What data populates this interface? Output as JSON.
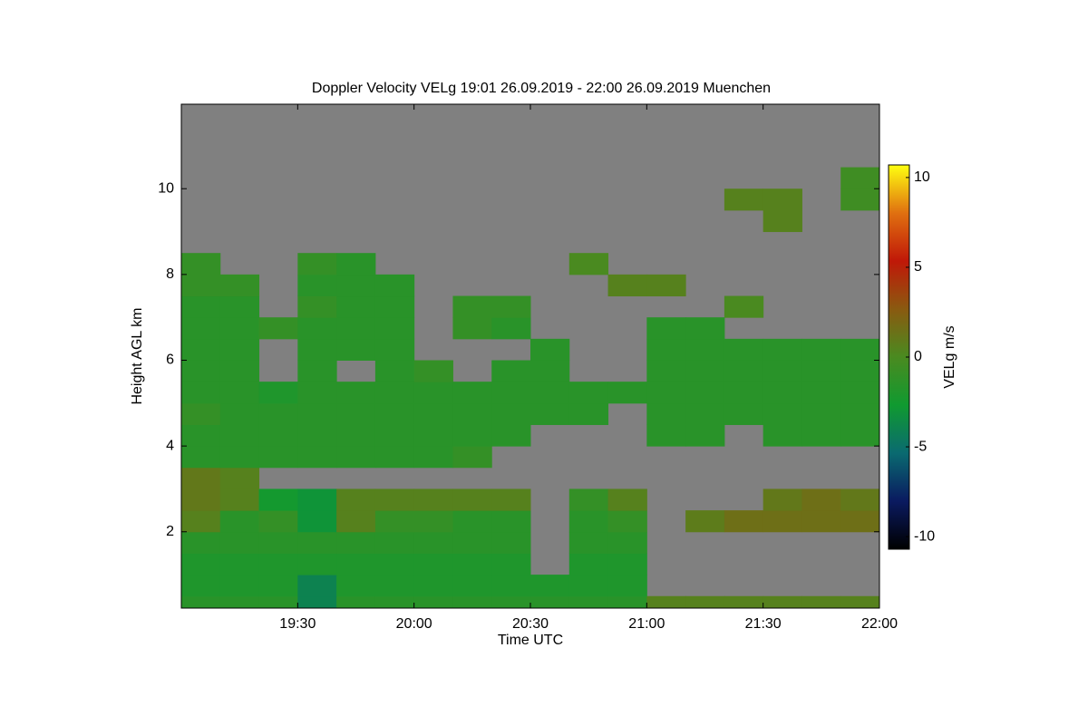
{
  "chart_data": {
    "type": "heatmap",
    "title": "Doppler Velocity VELg   19:01 26.09.2019 - 22:00 26.09.2019 Muenchen",
    "xlabel": "Time UTC",
    "ylabel": "Height AGL km",
    "colorbar_label": "VELg m/s",
    "xlim": [
      1140,
      1320
    ],
    "xticks": [
      {
        "value": 1170,
        "label": "19:30"
      },
      {
        "value": 1200,
        "label": "20:00"
      },
      {
        "value": 1230,
        "label": "20:30"
      },
      {
        "value": 1260,
        "label": "21:00"
      },
      {
        "value": 1290,
        "label": "21:30"
      },
      {
        "value": 1320,
        "label": "22:00"
      }
    ],
    "ylim": [
      0.22,
      11.97
    ],
    "yticks": [
      2,
      4,
      6,
      8,
      10
    ],
    "zlim": [
      -10.7,
      10.7
    ],
    "zticks": [
      10,
      5,
      0,
      -5,
      -10
    ],
    "colormap": [
      "#000000",
      "#0a1a60",
      "#0a6a70",
      "#109a30",
      "#4a8a20",
      "#8a5a10",
      "#c01808",
      "#e07010",
      "#ffff10"
    ],
    "missing_color": "#808080",
    "x_edges": [
      1140,
      1150,
      1160,
      1170,
      1180,
      1190,
      1200,
      1210,
      1220,
      1230,
      1240,
      1250,
      1260,
      1270,
      1280,
      1290,
      1300,
      1310,
      1320
    ],
    "y_edges": [
      0,
      0.5,
      1,
      1.5,
      2,
      2.5,
      3,
      3.5,
      4,
      4.5,
      5,
      5.5,
      6,
      6.5,
      7,
      7.5,
      8,
      8.5,
      9,
      9.5,
      10,
      10.5,
      11,
      11.5,
      12
    ],
    "z": [
      [
        -1.5,
        -1.5,
        -1.5,
        -4,
        -1.5,
        -1.5,
        -1.5,
        -1.5,
        -1.5,
        -1.5,
        -1.5,
        -1.5,
        0.5,
        0.5,
        0.5,
        0.5,
        0.5,
        0.5
      ],
      [
        -2,
        -2,
        -2,
        -4,
        -2,
        -2,
        -2,
        -2,
        -2,
        -2,
        -2,
        -2,
        null,
        null,
        null,
        null,
        null,
        null
      ],
      [
        -2,
        -2,
        -2,
        -2,
        -2,
        -2,
        -2,
        -2,
        -2,
        null,
        -2,
        -2,
        null,
        null,
        null,
        null,
        null,
        null
      ],
      [
        -1.5,
        -1.5,
        -1.5,
        -1.5,
        -1.5,
        -1.5,
        -1.5,
        -1.5,
        -1.5,
        null,
        -1.5,
        -1.5,
        null,
        null,
        null,
        null,
        null,
        null
      ],
      [
        0.5,
        -1.5,
        -1,
        -3,
        0.5,
        -1,
        -1,
        -1.5,
        -1.5,
        null,
        -1.5,
        -1,
        null,
        0.8,
        1.5,
        1.5,
        1.5,
        1.5
      ],
      [
        1,
        0.5,
        -2.5,
        -3,
        0.5,
        0.5,
        0.5,
        0.5,
        0.5,
        null,
        -1,
        0.5,
        null,
        null,
        null,
        1,
        1.5,
        1
      ],
      [
        1,
        0.5,
        null,
        null,
        null,
        null,
        null,
        null,
        null,
        null,
        null,
        null,
        null,
        null,
        null,
        null,
        null,
        null
      ],
      [
        -1.5,
        -1.5,
        -1.5,
        -1.5,
        -1.5,
        -1.5,
        -1.5,
        -1,
        null,
        null,
        null,
        null,
        null,
        null,
        null,
        null,
        null,
        null
      ],
      [
        -1.5,
        -1.5,
        -1.5,
        -1.5,
        -1.5,
        -1.5,
        -1.5,
        -1.5,
        -1.5,
        null,
        null,
        null,
        -1.5,
        -1.5,
        null,
        -1.5,
        -1.5,
        -1.5
      ],
      [
        -1,
        -1.5,
        -1.5,
        -1.5,
        -1.5,
        -1.5,
        -1.5,
        -1.5,
        -1.5,
        -1.5,
        -1.5,
        null,
        -1.5,
        -1.5,
        -1.5,
        -1.5,
        -1.5,
        -1.5
      ],
      [
        -1.5,
        -1.5,
        -2,
        -1.5,
        -1.5,
        -1.5,
        -1.5,
        -1.5,
        -1.5,
        -1.5,
        -1.5,
        -1.5,
        -1.5,
        -1.5,
        -1.5,
        -1.5,
        -1.5,
        -1.5
      ],
      [
        -1.5,
        -1.5,
        null,
        -1.5,
        null,
        -1.5,
        -1,
        null,
        -1.5,
        -1.5,
        null,
        null,
        -1.5,
        -1.5,
        -1.5,
        -1.5,
        -1.5,
        -1.5
      ],
      [
        -1.5,
        -1.5,
        null,
        -1.5,
        -1.5,
        -1.5,
        null,
        null,
        null,
        -1.5,
        null,
        null,
        -1.5,
        -1.5,
        -1.5,
        -1.5,
        -1.5,
        -1.5
      ],
      [
        -1.5,
        -1.5,
        -1,
        -1.5,
        -1.5,
        -1.5,
        null,
        -1,
        -1.5,
        null,
        null,
        null,
        -1.5,
        -1.5,
        null,
        null,
        null,
        null
      ],
      [
        -1.5,
        -1.5,
        null,
        -1,
        -1.5,
        -1.5,
        null,
        -1,
        -1,
        null,
        null,
        null,
        null,
        null,
        0,
        null,
        null,
        null
      ],
      [
        -1,
        -1,
        null,
        -1.5,
        -1.5,
        -1.5,
        null,
        null,
        null,
        null,
        null,
        0.5,
        0.5,
        null,
        null,
        null,
        null,
        null
      ],
      [
        -1,
        null,
        null,
        -1,
        -1.5,
        null,
        null,
        null,
        null,
        null,
        0,
        null,
        null,
        null,
        null,
        null,
        null,
        null
      ],
      [
        null,
        null,
        null,
        null,
        null,
        null,
        null,
        null,
        null,
        null,
        null,
        null,
        null,
        null,
        null,
        null,
        null,
        null
      ],
      [
        null,
        null,
        null,
        null,
        null,
        null,
        null,
        null,
        null,
        null,
        null,
        null,
        null,
        null,
        null,
        0.5,
        null,
        null
      ],
      [
        null,
        null,
        null,
        null,
        null,
        null,
        null,
        null,
        null,
        null,
        null,
        null,
        null,
        null,
        0.5,
        0.5,
        null,
        -0.5
      ],
      [
        null,
        null,
        null,
        null,
        null,
        null,
        null,
        null,
        null,
        null,
        null,
        null,
        null,
        null,
        null,
        null,
        null,
        -0.5
      ],
      [
        null,
        null,
        null,
        null,
        null,
        null,
        null,
        null,
        null,
        null,
        null,
        null,
        null,
        null,
        null,
        null,
        null,
        null
      ],
      [
        null,
        null,
        null,
        null,
        null,
        null,
        null,
        null,
        null,
        null,
        null,
        null,
        null,
        null,
        null,
        null,
        null,
        null
      ],
      [
        null,
        null,
        null,
        null,
        null,
        null,
        null,
        null,
        null,
        null,
        null,
        null,
        null,
        null,
        null,
        null,
        null,
        null
      ]
    ]
  }
}
